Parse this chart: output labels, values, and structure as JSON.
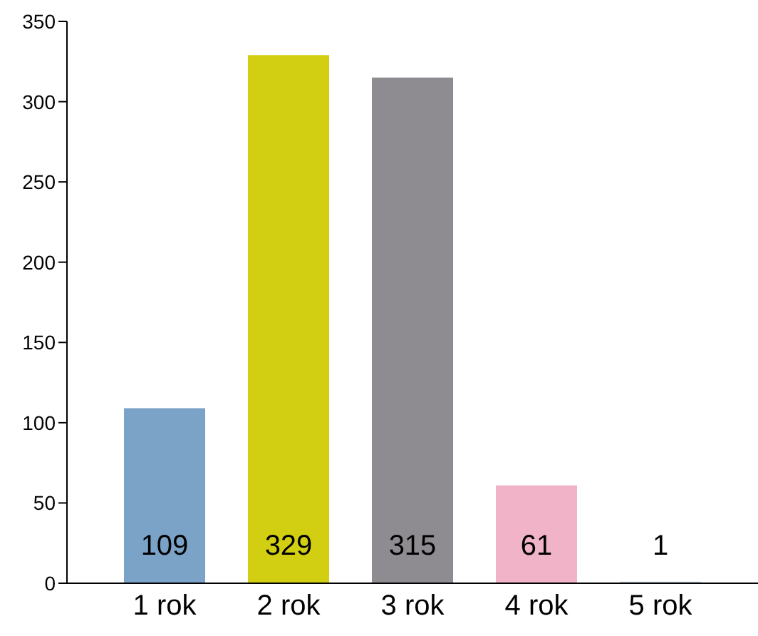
{
  "chart_data": {
    "type": "bar",
    "categories": [
      "1 rok",
      "2 rok",
      "3 rok",
      "4 rok",
      "5 rok"
    ],
    "values": [
      109,
      329,
      315,
      61,
      1
    ],
    "colors": [
      "#7ba3c8",
      "#d2cf12",
      "#8e8c90",
      "#f0b3c8",
      "#c8d4e0"
    ],
    "ylim": [
      0,
      350
    ],
    "yticks": [
      0,
      50,
      100,
      150,
      200,
      250,
      300,
      350
    ],
    "data_labels": true
  }
}
